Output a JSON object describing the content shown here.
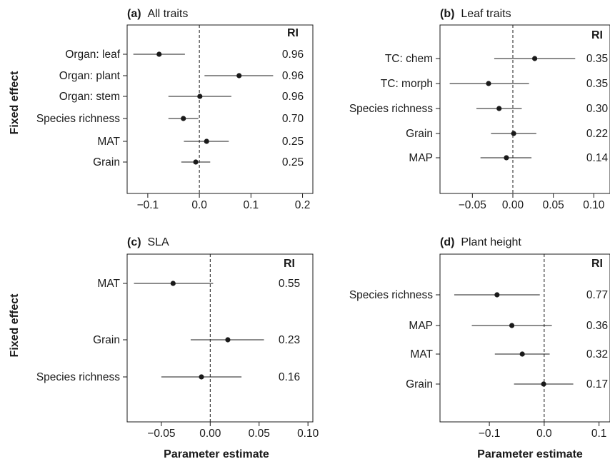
{
  "figure": {
    "y_axis_title": "Fixed effect",
    "x_axis_title": "Parameter estimate"
  },
  "chart_data": [
    {
      "type": "scatter",
      "panel_letter": "(a)",
      "title": "All traits",
      "xlabel": "",
      "ylabel": "Fixed effect",
      "ri_header": "RI",
      "xlim": [
        -0.14,
        0.22
      ],
      "xticks": [
        -0.1,
        0.0,
        0.1,
        0.2
      ],
      "xtick_labels": [
        "−0.1",
        "0.0",
        "0.1",
        "0.2"
      ],
      "reference_line_x": 0,
      "categories": [
        "Organ: leaf",
        "Organ: plant",
        "Organ: stem",
        "Species richness",
        "MAT",
        "Grain"
      ],
      "values": [
        -0.078,
        0.077,
        0.001,
        -0.031,
        0.014,
        -0.007
      ],
      "ci_low": [
        -0.128,
        0.01,
        -0.06,
        -0.06,
        -0.03,
        -0.035
      ],
      "ci_high": [
        -0.028,
        0.143,
        0.062,
        -0.002,
        0.057,
        0.021
      ],
      "ri": [
        "0.96",
        "0.96",
        "0.96",
        "0.70",
        "0.25",
        "0.25"
      ]
    },
    {
      "type": "scatter",
      "panel_letter": "(b)",
      "title": "Leaf traits",
      "xlabel": "",
      "ylabel": "",
      "ri_header": "RI",
      "xlim": [
        -0.09,
        0.12
      ],
      "xticks": [
        -0.05,
        0.0,
        0.05,
        0.1
      ],
      "xtick_labels": [
        "−0.05",
        "0.00",
        "0.05",
        "0.10"
      ],
      "reference_line_x": 0,
      "categories": [
        "TC: chem",
        "TC: morph",
        "Species richness",
        "Grain",
        "MAP"
      ],
      "values": [
        0.027,
        -0.03,
        -0.017,
        0.001,
        -0.008
      ],
      "ci_low": [
        -0.023,
        -0.078,
        -0.045,
        -0.027,
        -0.04
      ],
      "ci_high": [
        0.077,
        0.02,
        0.011,
        0.029,
        0.023
      ],
      "ri": [
        "0.35",
        "0.35",
        "0.30",
        "0.22",
        "0.14"
      ]
    },
    {
      "type": "scatter",
      "panel_letter": "(c)",
      "title": "SLA",
      "xlabel": "Parameter estimate",
      "ylabel": "Fixed effect",
      "ri_header": "RI",
      "xlim": [
        -0.085,
        0.105
      ],
      "xticks": [
        -0.05,
        0.0,
        0.05,
        0.1
      ],
      "xtick_labels": [
        "−0.05",
        "0.00",
        "0.05",
        "0.10"
      ],
      "reference_line_x": 0,
      "categories": [
        "MAT",
        "Grain",
        "Species richness"
      ],
      "values": [
        -0.038,
        0.018,
        -0.009
      ],
      "ci_low": [
        -0.078,
        -0.02,
        -0.05
      ],
      "ci_high": [
        0.003,
        0.055,
        0.032
      ],
      "ri": [
        "0.55",
        "0.23",
        "0.16"
      ]
    },
    {
      "type": "scatter",
      "panel_letter": "(d)",
      "title": "Plant height",
      "xlabel": "Parameter estimate",
      "ylabel": "",
      "ri_header": "RI",
      "xlim": [
        -0.19,
        0.12
      ],
      "xticks": [
        -0.1,
        0.0,
        0.1
      ],
      "xtick_labels": [
        "−0.1",
        "0.0",
        "0.1"
      ],
      "reference_line_x": 0,
      "categories": [
        "Species richness",
        "MAP",
        "MAT",
        "Grain"
      ],
      "values": [
        -0.086,
        -0.059,
        -0.04,
        -0.001
      ],
      "ci_low": [
        -0.164,
        -0.132,
        -0.09,
        -0.055
      ],
      "ci_high": [
        -0.008,
        0.014,
        0.01,
        0.053
      ],
      "ri": [
        "0.77",
        "0.36",
        "0.32",
        "0.17"
      ]
    }
  ]
}
